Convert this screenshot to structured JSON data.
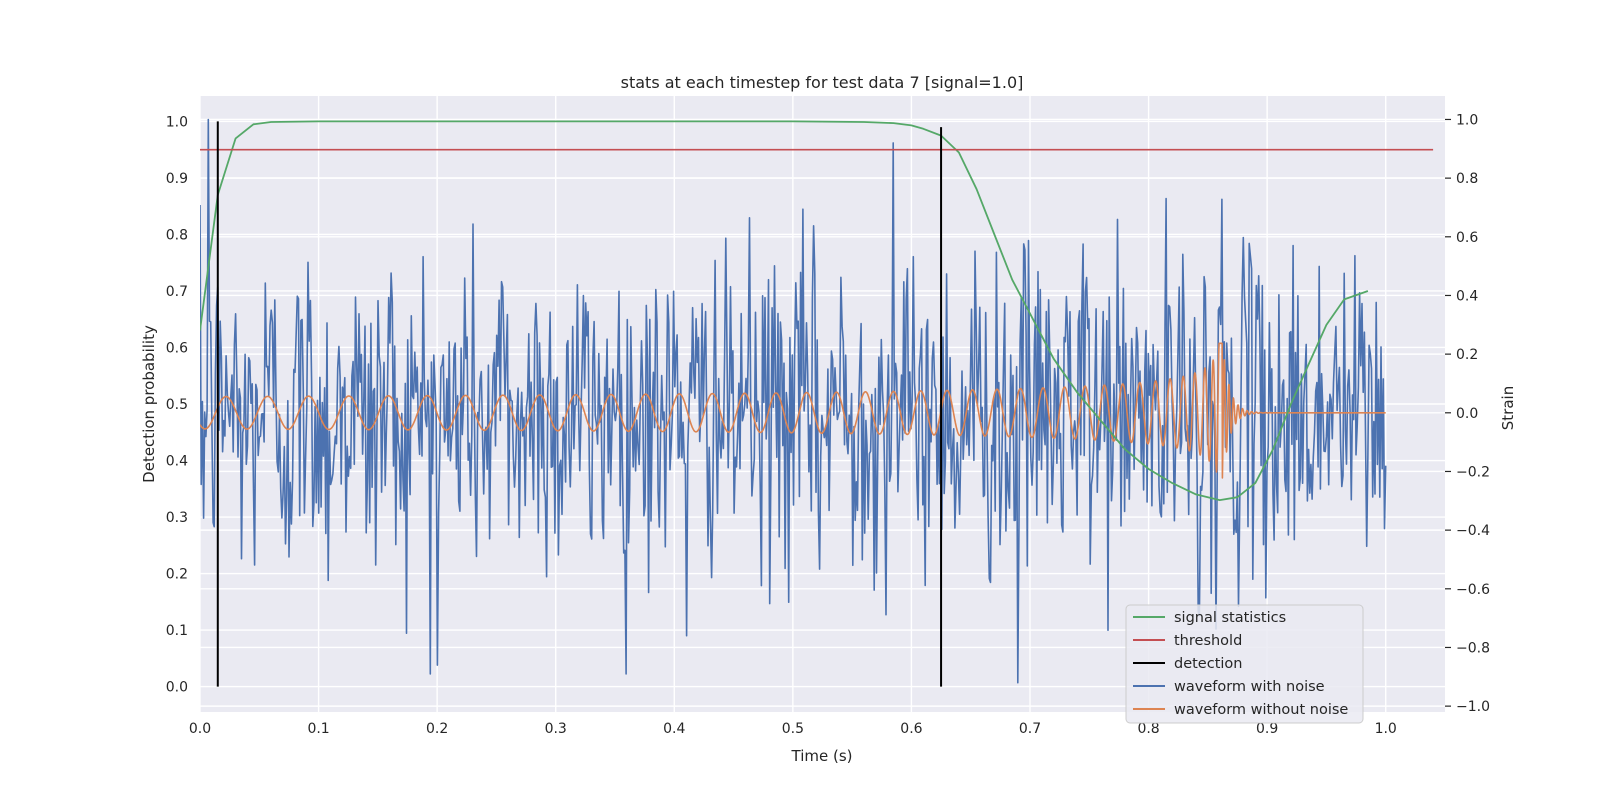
{
  "chart_data": {
    "type": "line",
    "title": "stats at each timestep for test data 7 [signal=1.0]",
    "xlabel": "Time (s)",
    "ylabel": "Detection probability",
    "y2label": "Strain",
    "xlim": [
      0.0,
      1.05
    ],
    "ylim": [
      -0.045,
      1.045
    ],
    "y2lim": [
      -1.02,
      1.08
    ],
    "xticks": [
      "0.0",
      "0.1",
      "0.2",
      "0.3",
      "0.4",
      "0.5",
      "0.6",
      "0.7",
      "0.8",
      "0.9",
      "1.0"
    ],
    "yticks": [
      "0.0",
      "0.1",
      "0.2",
      "0.3",
      "0.4",
      "0.5",
      "0.6",
      "0.7",
      "0.8",
      "0.9",
      "1.0"
    ],
    "y2ticks": [
      "−1.0",
      "−0.8",
      "−0.6",
      "−0.4",
      "−0.2",
      "0.0",
      "0.2",
      "0.4",
      "0.6",
      "0.8",
      "1.0"
    ],
    "grid": true,
    "legend_position": "lower-right",
    "colors": {
      "signal_statistics": "#55a868",
      "threshold": "#c44e52",
      "detection": "#000000",
      "waveform_with_noise": "#4c72b0",
      "waveform_without_noise": "#dd8452",
      "plot_background": "#eaeaf2",
      "grid": "#ffffff"
    },
    "series": [
      {
        "name": "signal statistics",
        "axis": "left",
        "x": [
          0.0,
          0.015,
          0.03,
          0.045,
          0.06,
          0.1,
          0.2,
          0.3,
          0.4,
          0.5,
          0.56,
          0.585,
          0.6,
          0.61,
          0.625,
          0.64,
          0.655,
          0.67,
          0.685,
          0.7,
          0.72,
          0.74,
          0.76,
          0.78,
          0.8,
          0.82,
          0.84,
          0.86,
          0.875,
          0.89,
          0.905,
          0.92,
          0.935,
          0.95,
          0.965,
          0.985
        ],
        "y": [
          0.63,
          0.87,
          0.97,
          0.995,
          0.999,
          1.0,
          1.0,
          1.0,
          1.0,
          1.0,
          0.999,
          0.997,
          0.993,
          0.987,
          0.975,
          0.945,
          0.88,
          0.8,
          0.72,
          0.66,
          0.58,
          0.52,
          0.47,
          0.42,
          0.385,
          0.36,
          0.34,
          0.33,
          0.335,
          0.36,
          0.42,
          0.5,
          0.57,
          0.64,
          0.685,
          0.7
        ]
      },
      {
        "name": "threshold",
        "axis": "left",
        "x": [
          0.0,
          1.04
        ],
        "y": [
          0.95,
          0.95
        ]
      },
      {
        "name": "detection",
        "axis": "left",
        "segments": [
          {
            "x": 0.015,
            "y": [
              0.0,
              1.0
            ]
          },
          {
            "x": 0.625,
            "y": [
              0.0,
              0.99
            ]
          }
        ]
      },
      {
        "name": "waveform with noise",
        "axis": "right",
        "x_range": [
          0.0,
          1.0
        ],
        "n_points": 1000,
        "y_range_observed": [
          -0.92,
          1.0
        ],
        "spikes": [
          {
            "x": 0.007,
            "y": 1.0
          },
          {
            "x": 0.585,
            "y": 0.92
          },
          {
            "x": 0.2,
            "y": -0.86
          },
          {
            "x": 0.69,
            "y": -0.92
          },
          {
            "x": 0.41,
            "y": -0.76
          }
        ]
      },
      {
        "name": "waveform without noise",
        "axis": "right",
        "x_range": [
          0.0,
          1.0
        ],
        "merger_time": 0.862,
        "amplitude_start": 0.055,
        "amplitude_peak": 0.28,
        "frequency_start_hz": 28
      }
    ]
  }
}
